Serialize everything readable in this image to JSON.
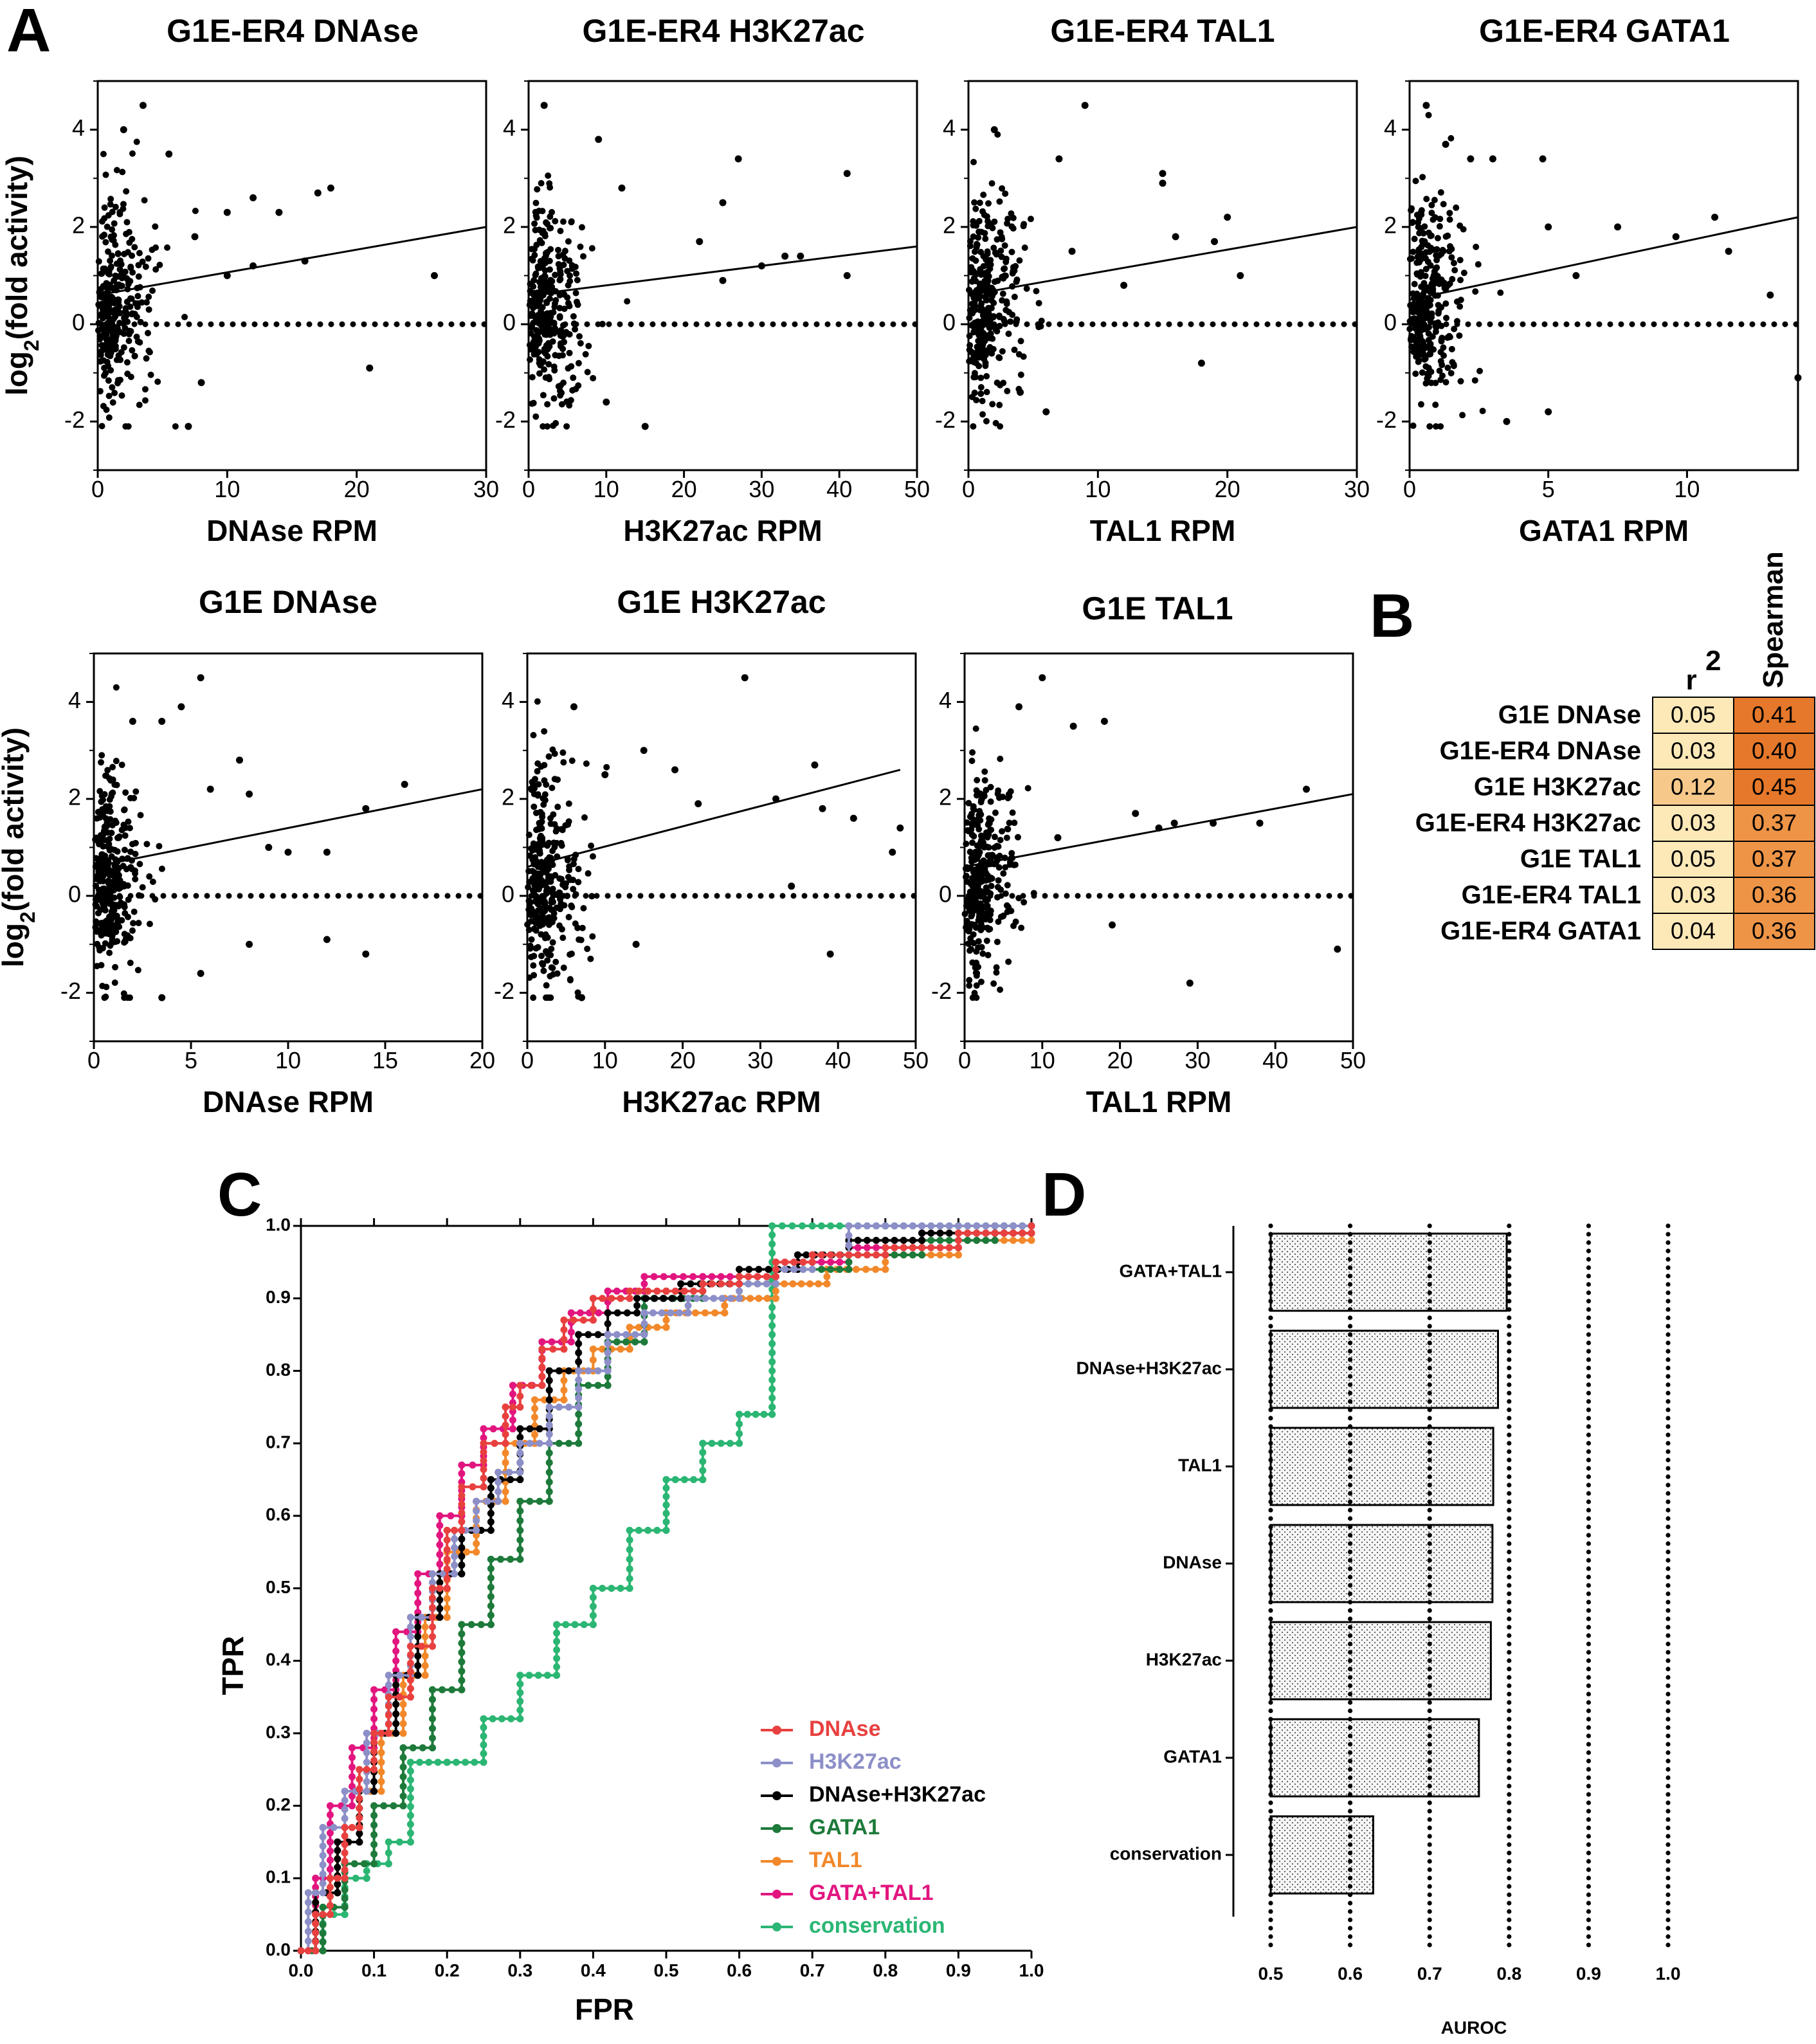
{
  "panel_labels": [
    "A",
    "B",
    "C",
    "D"
  ],
  "colors": {
    "dnase": "#e8403f",
    "h3k27ac": "#8d8fc8",
    "dnase_h3k27ac": "#000000",
    "gata1": "#1d7a3a",
    "tal1": "#f2882a",
    "gata_tal1": "#e2157f",
    "conservation": "#2bb673",
    "r2_light": "#fde9b8",
    "r2_mid": "#f6c98b",
    "spear_dark": "#e5782a",
    "spear_mid": "#ee9447"
  },
  "chart_data": [
    {
      "type": "scatter",
      "panel": "A",
      "title": "G1E-ER4 DNAse",
      "xlabel": "DNAse RPM",
      "ylabel": "log2(fold activity)",
      "xlim": [
        0,
        30
      ],
      "ylim": [
        -3,
        5
      ],
      "xticks": [
        0,
        10,
        20,
        30
      ],
      "yticks": [
        -2,
        0,
        2,
        4
      ],
      "fit_line": [
        [
          0,
          0.6
        ],
        [
          30,
          2.0
        ]
      ],
      "seed": 11,
      "points": [
        [
          2,
          4.0
        ],
        [
          3.5,
          4.5
        ],
        [
          5.5,
          3.5
        ],
        [
          7.5,
          1.8
        ],
        [
          10,
          2.3
        ],
        [
          12,
          2.6
        ],
        [
          14,
          2.3
        ],
        [
          16,
          1.3
        ],
        [
          17,
          2.7
        ],
        [
          18,
          2.8
        ],
        [
          21,
          -0.9
        ],
        [
          26,
          1.0
        ],
        [
          8,
          -1.2
        ],
        [
          7,
          -2.1
        ],
        [
          12,
          1.2
        ],
        [
          10,
          1.0
        ]
      ]
    },
    {
      "type": "scatter",
      "panel": "A",
      "title": "G1E-ER4 H3K27ac",
      "xlabel": "H3K27ac RPM",
      "ylabel": "",
      "xlim": [
        0,
        50
      ],
      "ylim": [
        -3,
        5
      ],
      "xticks": [
        0,
        10,
        20,
        30,
        40,
        50
      ],
      "yticks": [
        -2,
        0,
        2,
        4
      ],
      "fit_line": [
        [
          0,
          0.6
        ],
        [
          50,
          1.6
        ]
      ],
      "seed": 23,
      "points": [
        [
          2,
          4.5
        ],
        [
          9,
          3.8
        ],
        [
          12,
          2.8
        ],
        [
          22,
          1.7
        ],
        [
          25,
          2.5
        ],
        [
          27,
          3.4
        ],
        [
          30,
          1.2
        ],
        [
          33,
          1.4
        ],
        [
          35,
          1.4
        ],
        [
          41,
          3.1
        ],
        [
          41,
          1.0
        ],
        [
          15,
          -2.1
        ],
        [
          25,
          0.9
        ],
        [
          10,
          -1.6
        ]
      ]
    },
    {
      "type": "scatter",
      "panel": "A",
      "title": "G1E-ER4 TAL1",
      "xlabel": "TAL1 RPM",
      "ylabel": "",
      "xlim": [
        0,
        30
      ],
      "ylim": [
        -3,
        5
      ],
      "xticks": [
        0,
        10,
        20,
        30
      ],
      "yticks": [
        -2,
        0,
        2,
        4
      ],
      "fit_line": [
        [
          0,
          0.6
        ],
        [
          30,
          2.0
        ]
      ],
      "seed": 37,
      "points": [
        [
          2,
          4.0
        ],
        [
          7,
          3.4
        ],
        [
          9,
          4.5
        ],
        [
          15,
          3.1
        ],
        [
          15,
          2.9
        ],
        [
          16,
          1.8
        ],
        [
          19,
          1.7
        ],
        [
          20,
          2.2
        ],
        [
          21,
          1.0
        ],
        [
          18,
          -0.8
        ],
        [
          12,
          0.8
        ],
        [
          8,
          1.5
        ],
        [
          6,
          -1.8
        ],
        [
          4,
          -1.4
        ]
      ]
    },
    {
      "type": "scatter",
      "panel": "A",
      "title": "G1E-ER4 GATA1",
      "xlabel": "GATA1 RPM",
      "ylabel": "",
      "xlim": [
        0,
        14
      ],
      "ylim": [
        -3,
        5
      ],
      "xticks": [
        0,
        5,
        10
      ],
      "yticks": [
        -2,
        0,
        2,
        4
      ],
      "fit_line": [
        [
          0,
          0.5
        ],
        [
          14,
          2.2
        ]
      ],
      "seed": 53,
      "points": [
        [
          0.6,
          4.5
        ],
        [
          1.3,
          3.7
        ],
        [
          2.2,
          3.4
        ],
        [
          3,
          3.4
        ],
        [
          4.8,
          3.4
        ],
        [
          5,
          2.0
        ],
        [
          7.5,
          2.0
        ],
        [
          9.6,
          1.8
        ],
        [
          11,
          2.2
        ],
        [
          11.5,
          1.5
        ],
        [
          13,
          0.6
        ],
        [
          14,
          -1.1
        ],
        [
          5,
          -1.8
        ],
        [
          3.5,
          -2.0
        ],
        [
          6,
          1.0
        ]
      ]
    },
    {
      "type": "scatter",
      "panel": "A",
      "title": "G1E DNAse",
      "xlabel": "DNAse RPM",
      "ylabel": "log2(fold activity)",
      "xlim": [
        0,
        20
      ],
      "ylim": [
        -3,
        5
      ],
      "xticks": [
        0,
        5,
        10,
        15,
        20
      ],
      "yticks": [
        -2,
        0,
        2,
        4
      ],
      "fit_line": [
        [
          0,
          0.6
        ],
        [
          20,
          2.2
        ]
      ],
      "seed": 71,
      "points": [
        [
          2,
          3.6
        ],
        [
          3.5,
          3.6
        ],
        [
          4.5,
          3.9
        ],
        [
          5.5,
          4.5
        ],
        [
          6,
          2.2
        ],
        [
          7.5,
          2.8
        ],
        [
          8,
          2.1
        ],
        [
          9,
          1.0
        ],
        [
          10,
          0.9
        ],
        [
          12,
          0.9
        ],
        [
          14,
          1.8
        ],
        [
          16,
          2.3
        ],
        [
          12,
          -0.9
        ],
        [
          14,
          -1.2
        ],
        [
          5.5,
          -1.6
        ],
        [
          3.5,
          -2.1
        ],
        [
          8,
          -1.0
        ]
      ]
    },
    {
      "type": "scatter",
      "panel": "A",
      "title": "G1E H3K27ac",
      "xlabel": "H3K27ac RPM",
      "ylabel": "",
      "xlim": [
        0,
        50
      ],
      "ylim": [
        -3,
        5
      ],
      "xticks": [
        0,
        10,
        20,
        30,
        40,
        50
      ],
      "yticks": [
        -2,
        0,
        2,
        4
      ],
      "fit_line": [
        [
          0,
          0.6
        ],
        [
          48,
          2.6
        ]
      ],
      "seed": 89,
      "points": [
        [
          6,
          3.9
        ],
        [
          10,
          2.5
        ],
        [
          15,
          3.0
        ],
        [
          19,
          2.6
        ],
        [
          22,
          1.9
        ],
        [
          28,
          4.5
        ],
        [
          32,
          2.0
        ],
        [
          37,
          2.7
        ],
        [
          38,
          1.8
        ],
        [
          42,
          1.6
        ],
        [
          47,
          0.9
        ],
        [
          48,
          1.4
        ],
        [
          39,
          -1.2
        ],
        [
          7,
          -2.1
        ],
        [
          14,
          -1.0
        ],
        [
          34,
          0.2
        ]
      ]
    },
    {
      "type": "scatter",
      "panel": "A",
      "title": "G1E TAL1",
      "xlabel": "TAL1 RPM",
      "ylabel": "",
      "xlim": [
        0,
        50
      ],
      "ylim": [
        -3,
        5
      ],
      "xticks": [
        0,
        10,
        20,
        30,
        40,
        50
      ],
      "yticks": [
        -2,
        0,
        2,
        4
      ],
      "fit_line": [
        [
          0,
          0.6
        ],
        [
          50,
          2.1
        ]
      ],
      "seed": 97,
      "points": [
        [
          7,
          3.9
        ],
        [
          10,
          4.5
        ],
        [
          14,
          3.5
        ],
        [
          18,
          3.6
        ],
        [
          22,
          1.7
        ],
        [
          25,
          1.4
        ],
        [
          27,
          1.5
        ],
        [
          32,
          1.5
        ],
        [
          38,
          1.5
        ],
        [
          44,
          2.2
        ],
        [
          48,
          -1.1
        ],
        [
          29,
          -1.8
        ],
        [
          19,
          -0.6
        ],
        [
          12,
          1.2
        ]
      ]
    },
    {
      "type": "table",
      "panel": "B",
      "columns": [
        "r2",
        "Spearman"
      ],
      "rows": [
        "G1E DNAse",
        "G1E-ER4 DNAse",
        "G1E H3K27ac",
        "G1E-ER4 H3K27ac",
        "G1E TAL1",
        "G1E-ER4 TAL1",
        "G1E-ER4 GATA1"
      ],
      "r2": [
        "0.05",
        "0.03",
        "0.12",
        "0.03",
        "0.05",
        "0.03",
        "0.04"
      ],
      "spearman": [
        "0.41",
        "0.40",
        "0.45",
        "0.37",
        "0.37",
        "0.36",
        "0.36"
      ]
    },
    {
      "type": "line",
      "panel": "C",
      "xlabel": "FPR",
      "ylabel": "TPR",
      "xlim": [
        0,
        1
      ],
      "ylim": [
        0,
        1
      ],
      "xticks": [
        0.0,
        0.1,
        0.2,
        0.3,
        0.4,
        0.5,
        0.6,
        0.7,
        0.8,
        0.9,
        1.0
      ],
      "yticks": [
        0.0,
        0.1,
        0.2,
        0.3,
        0.4,
        0.5,
        0.6,
        0.7,
        0.8,
        0.9,
        1.0
      ],
      "legend_position": "bottom-right",
      "series": [
        {
          "name": "DNAse",
          "color": "#e8403f",
          "x": [
            0,
            0.02,
            0.04,
            0.06,
            0.08,
            0.1,
            0.12,
            0.15,
            0.18,
            0.2,
            0.22,
            0.25,
            0.28,
            0.3,
            0.33,
            0.36,
            0.4,
            0.45,
            0.5,
            0.55,
            0.6,
            0.65,
            0.7,
            0.8,
            0.9,
            1.0
          ],
          "y": [
            0,
            0.05,
            0.1,
            0.17,
            0.25,
            0.3,
            0.35,
            0.42,
            0.5,
            0.58,
            0.64,
            0.7,
            0.75,
            0.78,
            0.83,
            0.87,
            0.9,
            0.91,
            0.91,
            0.92,
            0.93,
            0.95,
            0.96,
            0.97,
            0.99,
            1.0
          ]
        },
        {
          "name": "H3K27ac",
          "color": "#8d8fc8",
          "x": [
            0,
            0.01,
            0.03,
            0.06,
            0.09,
            0.12,
            0.15,
            0.18,
            0.21,
            0.24,
            0.27,
            0.3,
            0.34,
            0.38,
            0.42,
            0.47,
            0.53,
            0.6,
            0.65,
            0.7,
            0.75,
            0.85,
            1.0
          ],
          "y": [
            0,
            0.08,
            0.17,
            0.22,
            0.3,
            0.38,
            0.46,
            0.52,
            0.58,
            0.62,
            0.66,
            0.7,
            0.75,
            0.8,
            0.85,
            0.88,
            0.9,
            0.92,
            0.94,
            0.96,
            1.0,
            1.0,
            1.0
          ]
        },
        {
          "name": "DNAse+H3K27ac",
          "color": "#000000",
          "x": [
            0,
            0.02,
            0.05,
            0.08,
            0.1,
            0.13,
            0.16,
            0.19,
            0.22,
            0.26,
            0.3,
            0.34,
            0.38,
            0.42,
            0.46,
            0.52,
            0.6,
            0.68,
            0.75,
            0.85,
            1.0
          ],
          "y": [
            0,
            0.08,
            0.15,
            0.22,
            0.3,
            0.38,
            0.46,
            0.52,
            0.58,
            0.65,
            0.72,
            0.8,
            0.85,
            0.88,
            0.9,
            0.92,
            0.94,
            0.96,
            0.98,
            0.99,
            1.0
          ]
        },
        {
          "name": "GATA1",
          "color": "#1d7a3a",
          "x": [
            0,
            0.03,
            0.06,
            0.1,
            0.14,
            0.18,
            0.22,
            0.26,
            0.3,
            0.34,
            0.38,
            0.42,
            0.47,
            0.55,
            0.65,
            0.75,
            0.85,
            0.95,
            1.0
          ],
          "y": [
            0,
            0.06,
            0.12,
            0.2,
            0.28,
            0.36,
            0.45,
            0.54,
            0.62,
            0.7,
            0.78,
            0.84,
            0.9,
            0.92,
            0.94,
            0.96,
            0.98,
            1.0,
            1.0
          ]
        },
        {
          "name": "TAL1",
          "color": "#f2882a",
          "x": [
            0,
            0.02,
            0.05,
            0.08,
            0.11,
            0.14,
            0.17,
            0.2,
            0.24,
            0.28,
            0.32,
            0.36,
            0.4,
            0.45,
            0.5,
            0.58,
            0.65,
            0.72,
            0.8,
            0.9,
            1.0
          ],
          "y": [
            0,
            0.08,
            0.15,
            0.22,
            0.3,
            0.38,
            0.46,
            0.55,
            0.62,
            0.7,
            0.76,
            0.8,
            0.83,
            0.86,
            0.88,
            0.9,
            0.92,
            0.94,
            0.96,
            0.98,
            1.0
          ]
        },
        {
          "name": "GATA+TAL1",
          "color": "#e2157f",
          "x": [
            0,
            0.02,
            0.04,
            0.07,
            0.1,
            0.13,
            0.16,
            0.19,
            0.22,
            0.25,
            0.29,
            0.33,
            0.37,
            0.42,
            0.47,
            0.55,
            0.65,
            0.75,
            0.85,
            1.0
          ],
          "y": [
            0,
            0.1,
            0.2,
            0.28,
            0.36,
            0.44,
            0.52,
            0.6,
            0.67,
            0.72,
            0.78,
            0.84,
            0.88,
            0.91,
            0.93,
            0.93,
            0.95,
            0.97,
            0.99,
            1.0
          ]
        },
        {
          "name": "conservation",
          "color": "#2bb673",
          "x": [
            0,
            0.03,
            0.06,
            0.09,
            0.12,
            0.15,
            0.2,
            0.25,
            0.3,
            0.35,
            0.4,
            0.45,
            0.5,
            0.55,
            0.6,
            0.645,
            0.645,
            0.7,
            0.8,
            0.9,
            1.0
          ],
          "y": [
            0,
            0.05,
            0.1,
            0.12,
            0.15,
            0.26,
            0.26,
            0.32,
            0.38,
            0.45,
            0.5,
            0.58,
            0.65,
            0.7,
            0.74,
            0.75,
            1.0,
            1.0,
            1.0,
            1.0,
            1.0
          ]
        }
      ]
    },
    {
      "type": "bar",
      "panel": "D",
      "orientation": "horizontal",
      "xlabel": "AUROC",
      "ylabel": "",
      "xlim": [
        0.5,
        1.0
      ],
      "xticks": [
        "0.5",
        "0.6",
        "0.7",
        "0.8",
        "0.9",
        "1.0"
      ],
      "categories": [
        "GATA+TAL1",
        "DNAse+H3K27ac",
        "TAL1",
        "DNAse",
        "H3K27ac",
        "GATA1",
        "conservation"
      ],
      "values": [
        0.797,
        0.786,
        0.78,
        0.779,
        0.777,
        0.762,
        0.629
      ]
    }
  ]
}
